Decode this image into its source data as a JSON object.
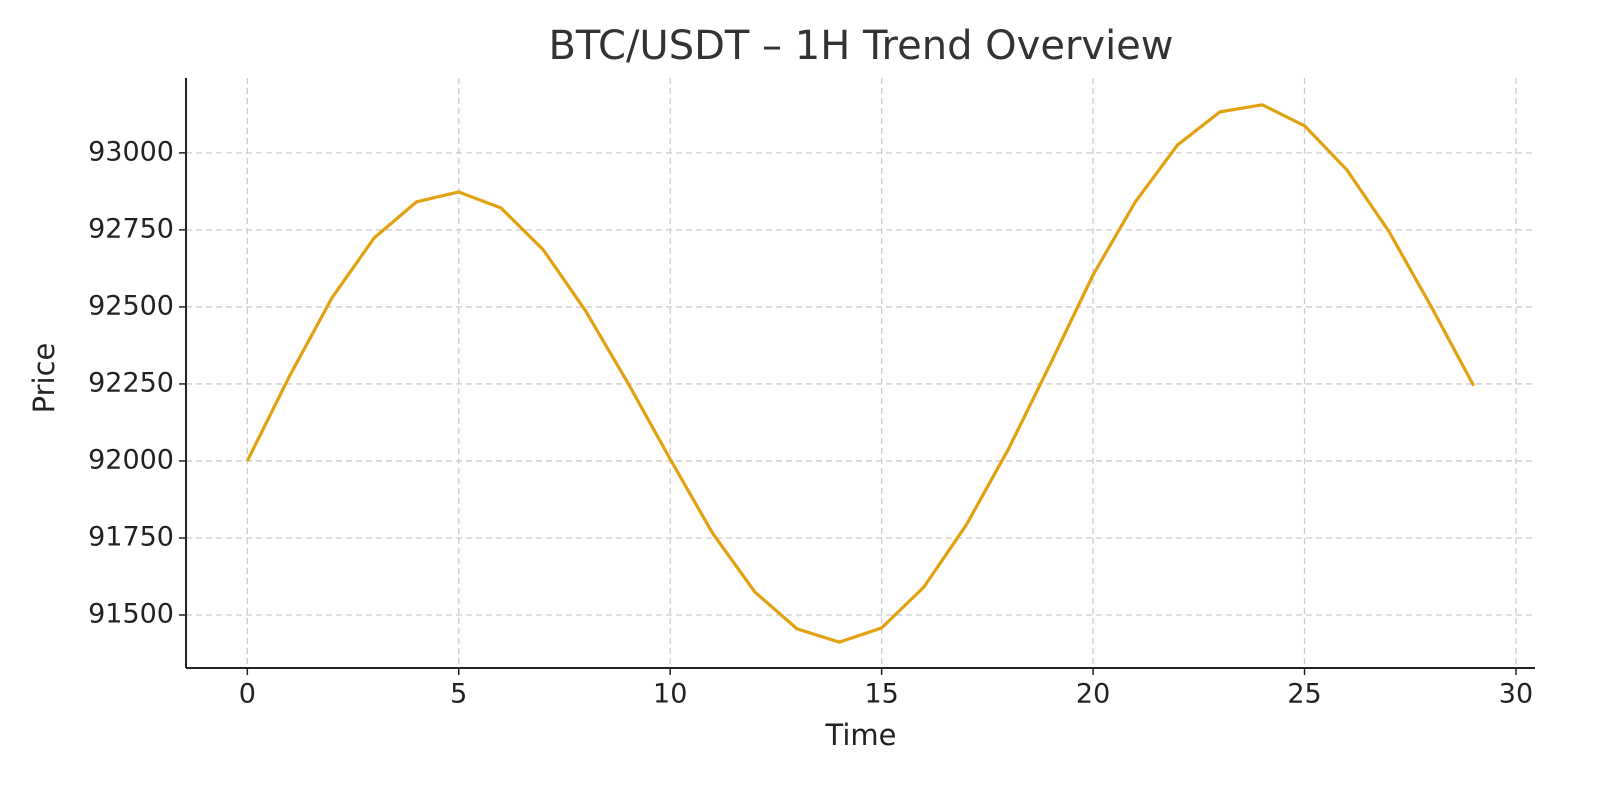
{
  "chart_data": {
    "type": "line",
    "title": "BTC/USDT – 1H Trend Overview",
    "x_label": "Time",
    "y_label": "Price",
    "x": [
      0,
      1,
      2,
      3,
      4,
      5,
      6,
      7,
      8,
      9,
      10,
      11,
      12,
      13,
      14,
      15,
      16,
      17,
      18,
      19,
      20,
      21,
      22,
      23,
      24,
      25,
      26,
      27,
      28,
      29
    ],
    "series": [
      {
        "name": "BTC/USDT",
        "color": "#e2a10f",
        "values": [
          92000,
          92276,
          92529,
          92724,
          92841,
          92873,
          92821,
          92685,
          92487,
          92253,
          92006,
          91766,
          91575,
          91455,
          91412,
          91458,
          91591,
          91792,
          92039,
          92318,
          92604,
          92841,
          93026,
          93133,
          93156,
          93088,
          92945,
          92744,
          92500,
          92244
        ]
      }
    ],
    "xlim": [
      -1.45,
      30.45
    ],
    "xticks": [
      0,
      5,
      10,
      15,
      20,
      25,
      30
    ],
    "ylim": [
      91328,
      93243
    ],
    "yticks": [
      91500,
      91750,
      92000,
      92250,
      92500,
      92750,
      93000
    ],
    "grid": true
  }
}
